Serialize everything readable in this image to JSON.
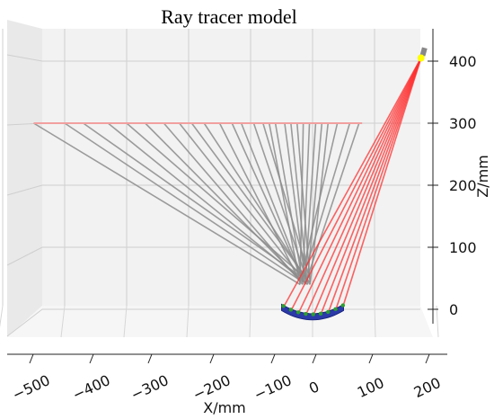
{
  "chart_data": {
    "type": "3d-ray-trace",
    "title": "Ray tracer model",
    "xlabel": "X/mm",
    "zlabel": "Z/mm",
    "x_ticks": [
      -500,
      -400,
      -300,
      -200,
      -100,
      0,
      100,
      200
    ],
    "x_tick_labels": [
      "−500",
      "−400",
      "−300",
      "−200",
      "−100",
      "0",
      "100",
      "200"
    ],
    "z_ticks": [
      0,
      100,
      200,
      300,
      400
    ],
    "z_tick_labels": [
      "0",
      "100",
      "200",
      "300",
      "400"
    ],
    "xlim": [
      -550,
      220
    ],
    "zlim": [
      -30,
      440
    ],
    "grid": true,
    "source": {
      "x": 175,
      "z": 405
    },
    "screen_z": 300,
    "screen_x_range": [
      -450,
      80
    ],
    "mirror": {
      "center_x": 0,
      "half_width": 50,
      "sag": 15
    },
    "reflection_point_z": 60,
    "incident_rays_mirror_x": [
      -47,
      -35,
      -23,
      -11,
      1,
      13,
      25,
      37,
      49
    ],
    "reflected_rays_screen_x": [
      -450,
      -400,
      -370,
      -330,
      -300,
      -270,
      -240,
      -215,
      -195,
      -175,
      -150,
      -130,
      -115,
      -95,
      -80,
      -70,
      -60,
      -45,
      -35,
      -25,
      -15,
      -5,
      5,
      15,
      25,
      40,
      60,
      75
    ],
    "colors": {
      "incident": "#ff3030",
      "reflected": "#8c8c8c",
      "screen": "#f2a0a0",
      "mirror_fill": "#2b3aa8",
      "mirror_points": "#2e9e2e",
      "source": "#ffff00",
      "source_body": "#888888"
    }
  }
}
